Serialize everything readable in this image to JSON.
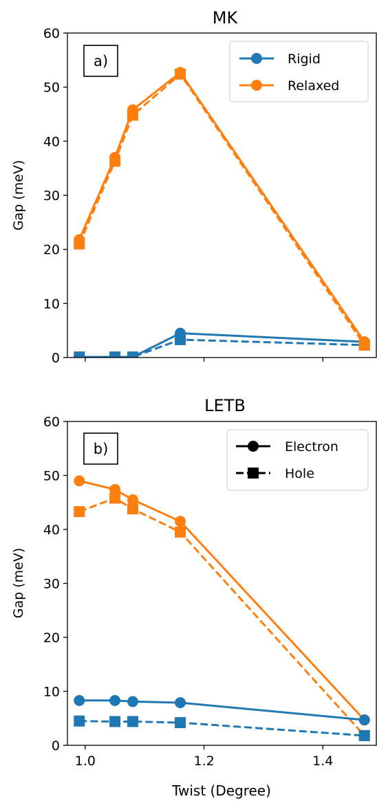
{
  "colors": {
    "rigid": "#1f77b4",
    "relaxed": "#ff7f0e",
    "axis": "#000000",
    "legend_border": "#cccccc"
  },
  "chart_data": [
    {
      "type": "line",
      "title": "MK",
      "panel_label": "a)",
      "xlabel": "",
      "ylabel": "Gap (meV)",
      "xlim": [
        0.97,
        1.49
      ],
      "ylim": [
        0,
        60
      ],
      "xticks": [
        1.0,
        1.2,
        1.4
      ],
      "xtick_labels": [
        "",
        "",
        ""
      ],
      "yticks": [
        0,
        10,
        20,
        30,
        40,
        50,
        60
      ],
      "ytick_labels": [
        "0",
        "10",
        "20",
        "30",
        "40",
        "50",
        "60"
      ],
      "grid": false,
      "legend": {
        "placement": "top-right",
        "entries": [
          "Rigid",
          "Relaxed"
        ]
      },
      "x": [
        0.99,
        1.05,
        1.08,
        1.16,
        1.47
      ],
      "series": [
        {
          "name": "Rigid",
          "kind": "electron",
          "color": "rigid",
          "values": [
            0.1,
            0.1,
            0.1,
            4.5,
            2.9
          ]
        },
        {
          "kind": "hole",
          "color": "rigid",
          "values": [
            0.1,
            0.1,
            0.1,
            3.3,
            2.3
          ]
        },
        {
          "name": "Relaxed",
          "kind": "electron",
          "color": "relaxed",
          "values": [
            21.8,
            37.0,
            45.8,
            52.7,
            2.9
          ]
        },
        {
          "kind": "hole",
          "color": "relaxed",
          "values": [
            21.0,
            36.3,
            44.8,
            52.4,
            2.3
          ]
        }
      ]
    },
    {
      "type": "line",
      "title": "LETB",
      "panel_label": "b)",
      "xlabel": "Twist (Degree)",
      "ylabel": "Gap (meV)",
      "xlim": [
        0.97,
        1.49
      ],
      "ylim": [
        0,
        60
      ],
      "xticks": [
        1.0,
        1.2,
        1.4
      ],
      "xtick_labels": [
        "1.0",
        "1.2",
        "1.4"
      ],
      "yticks": [
        0,
        10,
        20,
        30,
        40,
        50,
        60
      ],
      "ytick_labels": [
        "0",
        "10",
        "20",
        "30",
        "40",
        "50",
        "60"
      ],
      "grid": false,
      "legend": {
        "placement": "top-right",
        "entries": [
          "Electron",
          "Hole"
        ]
      },
      "x": [
        0.99,
        1.05,
        1.08,
        1.16,
        1.47
      ],
      "series": [
        {
          "kind": "electron",
          "color": "relaxed",
          "values": [
            49.0,
            47.4,
            45.5,
            41.5,
            4.7
          ]
        },
        {
          "kind": "hole",
          "color": "relaxed",
          "values": [
            43.3,
            45.8,
            43.8,
            39.5,
            1.8
          ]
        },
        {
          "kind": "electron",
          "color": "rigid",
          "values": [
            8.3,
            8.3,
            8.1,
            7.9,
            4.7
          ]
        },
        {
          "kind": "hole",
          "color": "rigid",
          "values": [
            4.5,
            4.4,
            4.4,
            4.2,
            1.8
          ]
        }
      ]
    }
  ]
}
